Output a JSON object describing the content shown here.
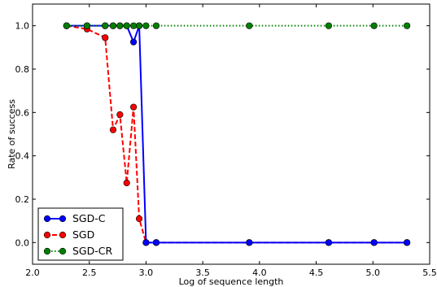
{
  "chart_data": {
    "type": "line",
    "title": "",
    "xlabel": "Log of sequence length",
    "ylabel": "Rate of success",
    "xlim": [
      2.0,
      5.5
    ],
    "ylim": [
      -0.1,
      1.1
    ],
    "x_ticks": [
      "2.0",
      "2.5",
      "3.0",
      "3.5",
      "4.0",
      "4.5",
      "5.0",
      "5.5"
    ],
    "y_ticks": [
      "0.0",
      "0.2",
      "0.4",
      "0.6",
      "0.8",
      "1.0"
    ],
    "grid": false,
    "legend_position": "bottom-left",
    "series": [
      {
        "name": "SGD-C",
        "color": "#0000ff",
        "marker_color": "#0000ff",
        "line_style": "solid",
        "x": [
          2.3,
          2.48,
          2.64,
          2.71,
          2.77,
          2.83,
          2.89,
          2.94,
          3.0,
          3.09,
          3.91,
          4.61,
          5.01,
          5.3
        ],
        "y": [
          1.0,
          1.0,
          1.0,
          1.0,
          1.0,
          1.0,
          0.925,
          1.0,
          0.0,
          0.0,
          0.0,
          0.0,
          0.0,
          0.0
        ]
      },
      {
        "name": "SGD",
        "color": "#ff0000",
        "marker_color": "#ff0000",
        "line_style": "dashed",
        "x": [
          2.3,
          2.48,
          2.64,
          2.71,
          2.77,
          2.83,
          2.89,
          2.94,
          3.0,
          3.09,
          3.91,
          4.61,
          5.01,
          5.3
        ],
        "y": [
          1.0,
          0.985,
          0.945,
          0.52,
          0.59,
          0.275,
          0.625,
          0.11,
          0.0,
          0.0,
          0.0,
          0.0,
          0.0,
          0.0
        ]
      },
      {
        "name": "SGD-CR",
        "color": "#008000",
        "marker_color": "#008000",
        "line_style": "dotted",
        "x": [
          2.3,
          2.48,
          2.64,
          2.71,
          2.77,
          2.83,
          2.89,
          2.94,
          3.0,
          3.09,
          3.91,
          4.61,
          5.01,
          5.3
        ],
        "y": [
          1.0,
          1.0,
          1.0,
          1.0,
          1.0,
          1.0,
          1.0,
          1.0,
          1.0,
          1.0,
          1.0,
          1.0,
          1.0,
          1.0
        ]
      }
    ]
  }
}
